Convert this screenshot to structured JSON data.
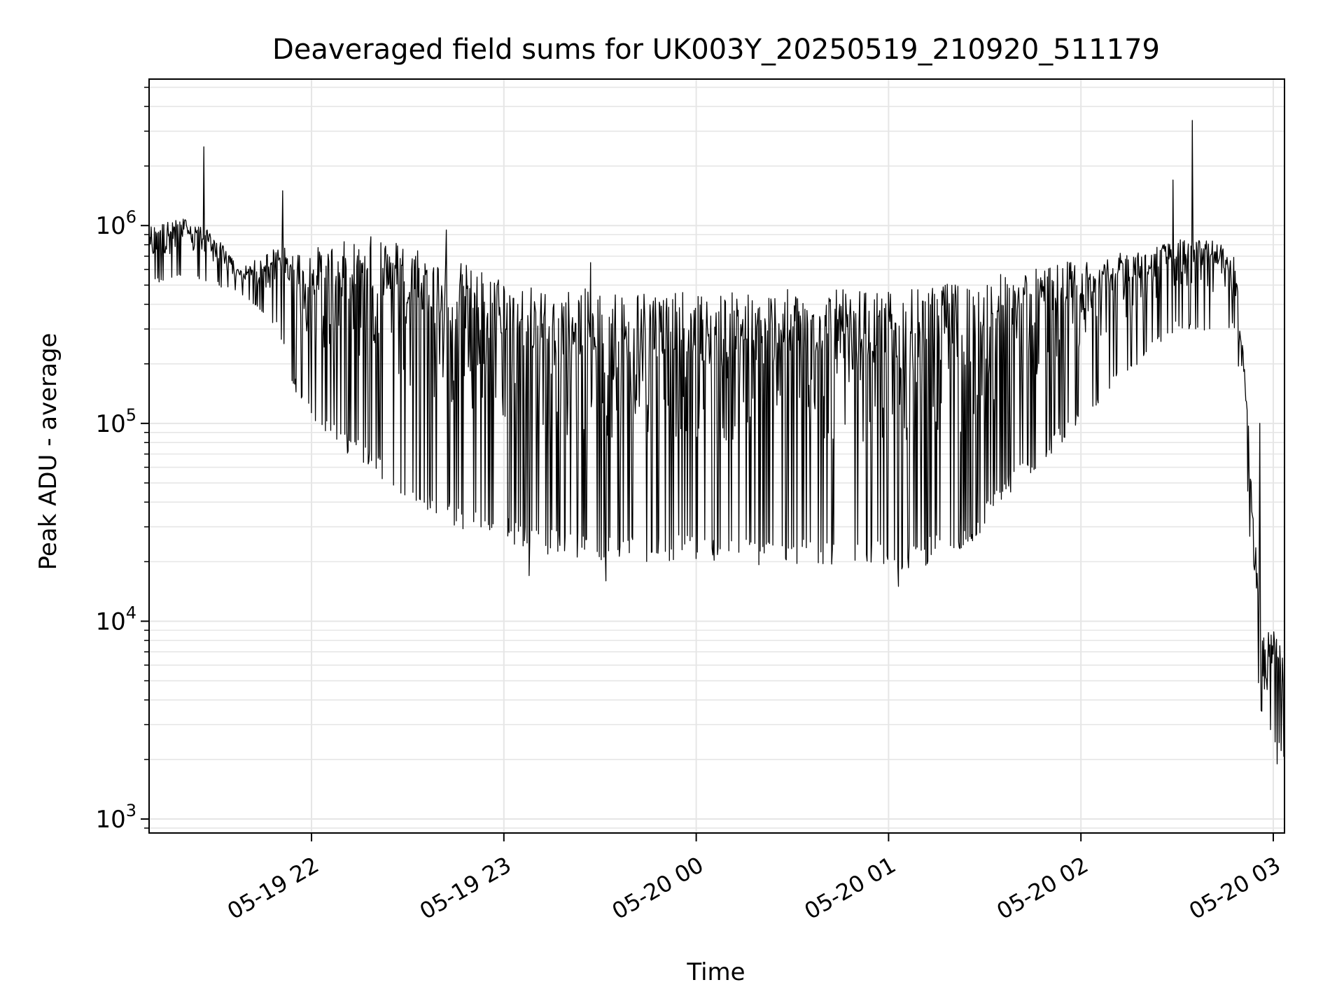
{
  "chart_data": {
    "type": "line",
    "title": "Deaveraged field sums for UK003Y_20250519_210920_511179",
    "xlabel": "Time",
    "ylabel": "Peak ADU - average",
    "yscale": "log",
    "ylim": [
      850,
      5500000
    ],
    "xlim": [
      "05-19 21:09:20",
      "05-20 03:03:30"
    ],
    "grid": true,
    "line_color": "#000000",
    "grid_color": "#e6e6e6",
    "x_ticks": [
      {
        "label": "05-19 22",
        "hours_after_2100": 1.0
      },
      {
        "label": "05-19 23",
        "hours_after_2100": 2.0
      },
      {
        "label": "05-20 00",
        "hours_after_2100": 3.0
      },
      {
        "label": "05-20 01",
        "hours_after_2100": 4.0
      },
      {
        "label": "05-20 02",
        "hours_after_2100": 5.0
      },
      {
        "label": "05-20 03",
        "hours_after_2100": 6.0
      }
    ],
    "y_ticks": [
      {
        "base": "10",
        "exp": "3",
        "value": 1000
      },
      {
        "base": "10",
        "exp": "4",
        "value": 10000
      },
      {
        "base": "10",
        "exp": "5",
        "value": 100000
      },
      {
        "base": "10",
        "exp": "6",
        "value": 1000000
      }
    ],
    "series": [
      {
        "envelope_hours": [
          0.156,
          0.35,
          0.5,
          0.63,
          0.83,
          0.9,
          1.1,
          1.3,
          1.5,
          1.7,
          2.0,
          2.2,
          2.5,
          2.8,
          3.0,
          3.3,
          3.6,
          3.9,
          4.1,
          4.4,
          4.6,
          4.9,
          5.1,
          5.3,
          5.5,
          5.7,
          5.8,
          5.86,
          5.9,
          5.95,
          6.0,
          6.06
        ],
        "upper": [
          1000000,
          1100000,
          900000,
          600000,
          800000,
          750000,
          800000,
          900000,
          850000,
          700000,
          550000,
          480000,
          480000,
          480000,
          450000,
          470000,
          480000,
          470000,
          480000,
          520000,
          580000,
          650000,
          700000,
          750000,
          850000,
          850000,
          700000,
          150000,
          30000,
          9000,
          9000,
          8000
        ],
        "lower": [
          500000,
          550000,
          500000,
          450000,
          300000,
          150000,
          80000,
          60000,
          40000,
          30000,
          25000,
          22000,
          20000,
          20000,
          20000,
          19000,
          19000,
          19000,
          18000,
          22000,
          40000,
          80000,
          130000,
          200000,
          300000,
          280000,
          300000,
          60000,
          8000,
          2500,
          2500,
          2000
        ],
        "spikes": [
          {
            "hours": 0.44,
            "value": 2500000
          },
          {
            "hours": 0.85,
            "value": 1500000
          },
          {
            "hours": 1.7,
            "value": 950000
          },
          {
            "hours": 2.45,
            "value": 650000
          },
          {
            "hours": 2.13,
            "value": 17000
          },
          {
            "hours": 2.53,
            "value": 16000
          },
          {
            "hours": 4.05,
            "value": 15000
          },
          {
            "hours": 5.48,
            "value": 1700000
          },
          {
            "hours": 5.58,
            "value": 3400000
          },
          {
            "hours": 5.93,
            "value": 100000
          },
          {
            "hours": 6.02,
            "value": 1900
          }
        ]
      }
    ]
  }
}
